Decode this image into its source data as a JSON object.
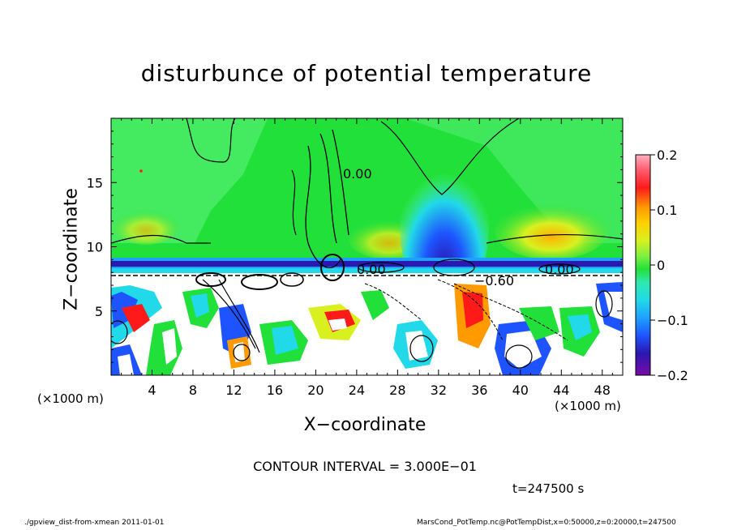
{
  "chart_data": {
    "type": "heatmap",
    "title": "disturbunce of potential temperature",
    "xlabel": "X−coordinate",
    "ylabel": "Z−coordinate",
    "x_unit_left": "(×1000 m)",
    "x_unit_right": "(×1000 m)",
    "xlim": [
      0,
      50
    ],
    "ylim": [
      0,
      20
    ],
    "x_ticks": [
      "4",
      "8",
      "12",
      "16",
      "20",
      "24",
      "28",
      "32",
      "36",
      "40",
      "44",
      "48"
    ],
    "y_ticks": [
      "5",
      "10",
      "15"
    ],
    "colorbar": {
      "range": [
        -0.2,
        0.2
      ],
      "ticks": [
        "0.2",
        "0.1",
        "0",
        "−0.1",
        "−0.2"
      ]
    },
    "contour_labels": [
      "0.00",
      "0.00",
      "0.00",
      "−0.60"
    ],
    "contour_interval": "CONTOUR INTERVAL = 3.000E−01",
    "time_label": "t=247500 s"
  },
  "footer": {
    "left": "./gpview_dist-from-xmean  2011-01-01",
    "right": "MarsCond_PotTemp.nc@PotTempDist,x=0:50000,z=0:20000,t=247500"
  },
  "colors": {
    "green": "#22e03a",
    "light_green": "#4cf08a",
    "cyan": "#21d9e8",
    "blue": "#1e54ff",
    "dark_blue": "#2a18b0",
    "purple": "#7a0aa8",
    "white": "#ffffff",
    "yellow": "#d8f020",
    "orange": "#ff9a00",
    "red": "#ff1a1a"
  }
}
